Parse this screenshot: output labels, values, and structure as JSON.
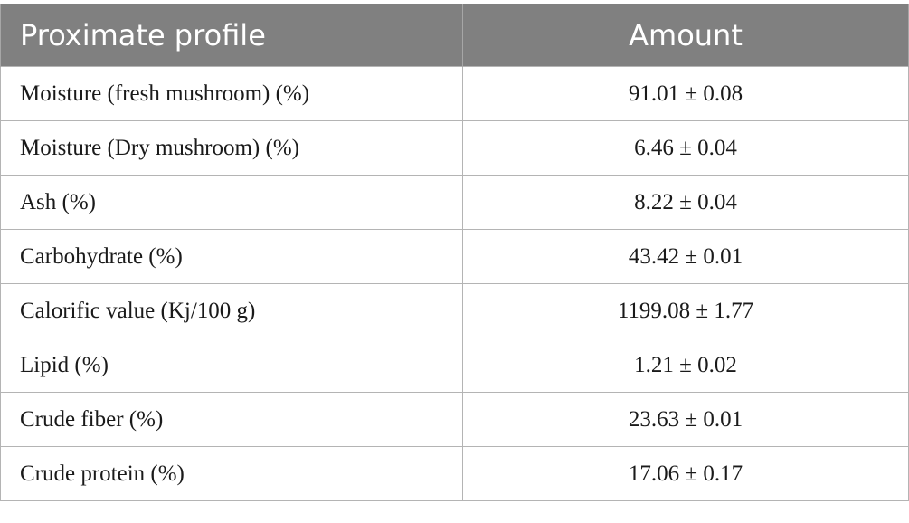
{
  "table": {
    "headers": [
      "Proximate profile",
      "Amount"
    ],
    "rows": [
      [
        "Moisture (fresh mushroom) (%)",
        "91.01 ± 0.08"
      ],
      [
        "Moisture (Dry mushroom) (%)",
        "6.46 ± 0.04"
      ],
      [
        "Ash (%)",
        "8.22 ± 0.04"
      ],
      [
        "Carbohydrate (%)",
        "43.42 ± 0.01"
      ],
      [
        "Calorific value (Kj/100 g)",
        "1199.08 ± 1.77"
      ],
      [
        "Lipid (%)",
        "1.21 ± 0.02"
      ],
      [
        "Crude fiber (%)",
        "23.63 ± 0.01"
      ],
      [
        "Crude protein (%)",
        "17.06 ± 0.17"
      ]
    ]
  },
  "colors": {
    "header_background": "#808080",
    "header_text": "#ffffff",
    "grid_line": "#b4b4b4",
    "body_text": "#1a1a1a"
  }
}
